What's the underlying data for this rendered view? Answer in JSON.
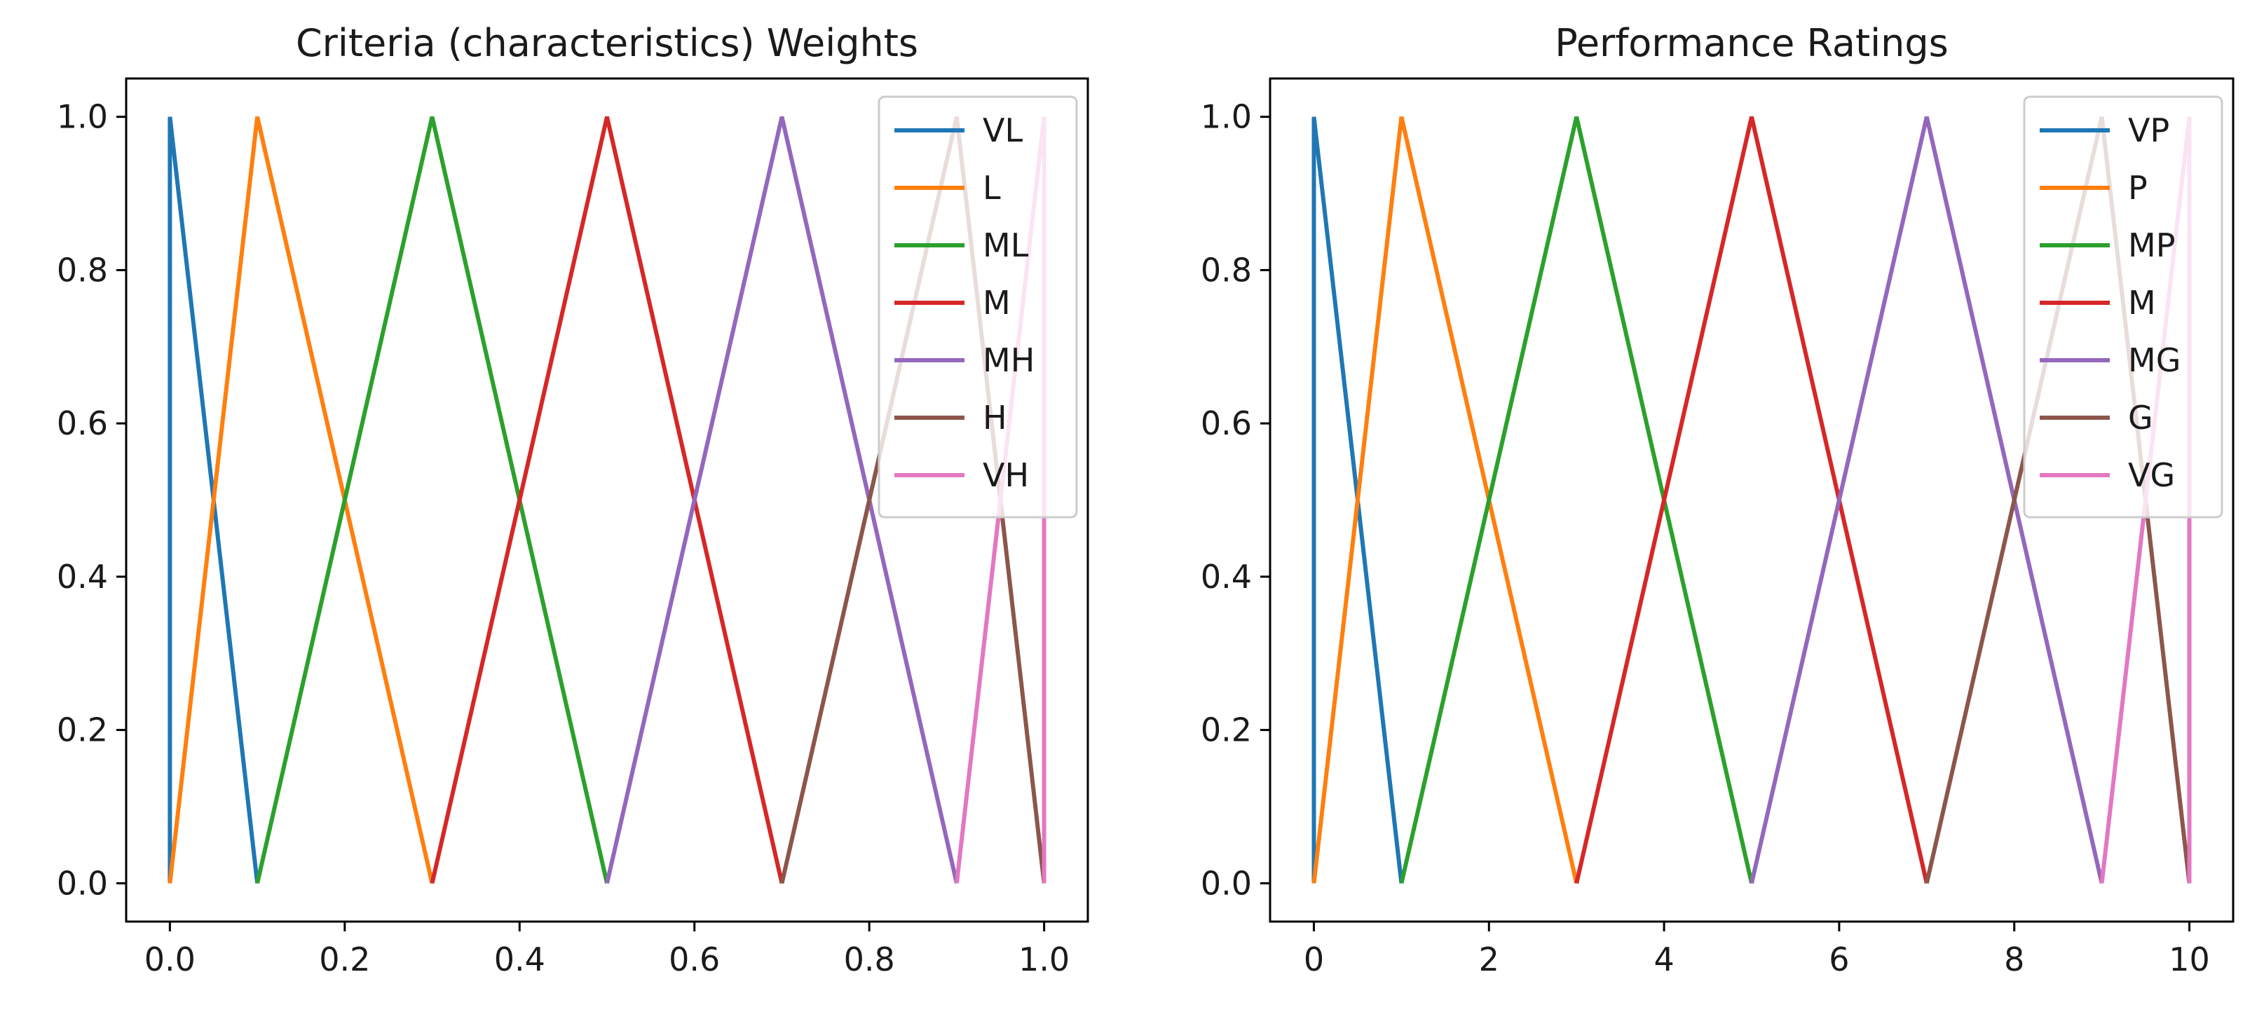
{
  "chart_data": [
    {
      "type": "line",
      "title": "Criteria (characteristics) Weights",
      "xlabel": "",
      "ylabel": "",
      "xlim": [
        -0.05,
        1.05
      ],
      "ylim": [
        -0.05,
        1.05
      ],
      "xticks": [
        0.0,
        0.2,
        0.4,
        0.6,
        0.8,
        1.0
      ],
      "xtick_labels": [
        "0.0",
        "0.2",
        "0.4",
        "0.6",
        "0.8",
        "1.0"
      ],
      "yticks": [
        0.0,
        0.2,
        0.4,
        0.6,
        0.8,
        1.0
      ],
      "ytick_labels": [
        "0.0",
        "0.2",
        "0.4",
        "0.6",
        "0.8",
        "1.0"
      ],
      "legend_position": "top-right",
      "series": [
        {
          "name": "VL",
          "color": "#1f77b4",
          "x": [
            0.0,
            0.0,
            0.1
          ],
          "y": [
            0,
            1,
            0
          ]
        },
        {
          "name": "L",
          "color": "#ff7f0e",
          "x": [
            0.0,
            0.1,
            0.3
          ],
          "y": [
            0,
            1,
            0
          ]
        },
        {
          "name": "ML",
          "color": "#2ca02c",
          "x": [
            0.1,
            0.3,
            0.5
          ],
          "y": [
            0,
            1,
            0
          ]
        },
        {
          "name": "M",
          "color": "#d62728",
          "x": [
            0.3,
            0.5,
            0.7
          ],
          "y": [
            0,
            1,
            0
          ]
        },
        {
          "name": "MH",
          "color": "#9467bd",
          "x": [
            0.5,
            0.7,
            0.9
          ],
          "y": [
            0,
            1,
            0
          ]
        },
        {
          "name": "H",
          "color": "#8c564b",
          "x": [
            0.7,
            0.9,
            1.0
          ],
          "y": [
            0,
            1,
            0
          ]
        },
        {
          "name": "VH",
          "color": "#e377c2",
          "x": [
            0.9,
            1.0,
            1.0
          ],
          "y": [
            0,
            1,
            0
          ]
        }
      ]
    },
    {
      "type": "line",
      "title": "Performance Ratings",
      "xlabel": "",
      "ylabel": "",
      "xlim": [
        -0.5,
        10.5
      ],
      "ylim": [
        -0.05,
        1.05
      ],
      "xticks": [
        0,
        2,
        4,
        6,
        8,
        10
      ],
      "xtick_labels": [
        "0",
        "2",
        "4",
        "6",
        "8",
        "10"
      ],
      "yticks": [
        0.0,
        0.2,
        0.4,
        0.6,
        0.8,
        1.0
      ],
      "ytick_labels": [
        "0.0",
        "0.2",
        "0.4",
        "0.6",
        "0.8",
        "1.0"
      ],
      "legend_position": "top-right",
      "series": [
        {
          "name": "VP",
          "color": "#1f77b4",
          "x": [
            0,
            0,
            1
          ],
          "y": [
            0,
            1,
            0
          ]
        },
        {
          "name": "P",
          "color": "#ff7f0e",
          "x": [
            0,
            1,
            3
          ],
          "y": [
            0,
            1,
            0
          ]
        },
        {
          "name": "MP",
          "color": "#2ca02c",
          "x": [
            1,
            3,
            5
          ],
          "y": [
            0,
            1,
            0
          ]
        },
        {
          "name": "M",
          "color": "#d62728",
          "x": [
            3,
            5,
            7
          ],
          "y": [
            0,
            1,
            0
          ]
        },
        {
          "name": "MG",
          "color": "#9467bd",
          "x": [
            5,
            7,
            9
          ],
          "y": [
            0,
            1,
            0
          ]
        },
        {
          "name": "G",
          "color": "#8c564b",
          "x": [
            7,
            9,
            10
          ],
          "y": [
            0,
            1,
            0
          ]
        },
        {
          "name": "VG",
          "color": "#e377c2",
          "x": [
            9,
            10,
            10
          ],
          "y": [
            0,
            1,
            0
          ]
        }
      ]
    }
  ]
}
